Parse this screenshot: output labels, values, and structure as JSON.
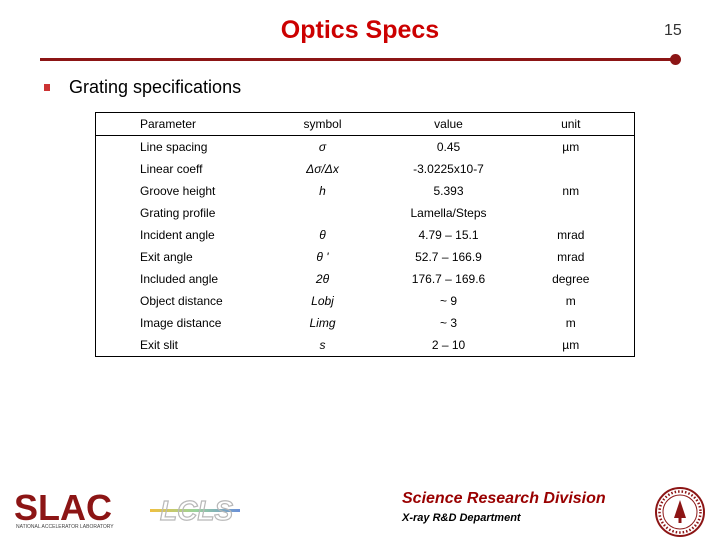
{
  "slide": {
    "title": "Optics Specs",
    "page_number": "15",
    "bullet": "Grating specifications"
  },
  "table": {
    "headers": [
      "Parameter",
      "symbol",
      "value",
      "unit"
    ],
    "rows": [
      {
        "parameter": "Line spacing",
        "symbol": "σ",
        "value": "0.45",
        "unit": "µm"
      },
      {
        "parameter": "Linear coeff",
        "symbol": "Δσ/Δx",
        "value": "-3.0225x10-7",
        "unit": ""
      },
      {
        "parameter": "Groove height",
        "symbol": "h",
        "value": "5.393",
        "unit": "nm"
      },
      {
        "parameter": "Grating profile",
        "symbol": "",
        "value": "Lamella/Steps",
        "unit": ""
      },
      {
        "parameter": "Incident angle",
        "symbol": "θ",
        "value": "4.79 – 15.1",
        "unit": "mrad"
      },
      {
        "parameter": "Exit angle",
        "symbol": "θ '",
        "value": "52.7 – 166.9",
        "unit": "mrad"
      },
      {
        "parameter": "Included angle",
        "symbol": "2θ",
        "value": "176.7 – 169.6",
        "unit": "degree"
      },
      {
        "parameter": "Object distance",
        "symbol": "Lobj",
        "value": "~ 9",
        "unit": "m"
      },
      {
        "parameter": "Image distance",
        "symbol": "Limg",
        "value": "~ 3",
        "unit": "m"
      },
      {
        "parameter": "Exit slit",
        "symbol": "s",
        "value": "2 – 10",
        "unit": "µm"
      }
    ]
  },
  "footer": {
    "slac_logo": "SLAC",
    "slac_logo_sub": "NATIONAL ACCELERATOR LABORATORY",
    "lcls_logo": "LCLS",
    "division": "Science Research Division",
    "department": "X-ray R&D Department",
    "seal_icon": "stanford-seal-icon"
  },
  "colors": {
    "title": "#cc0000",
    "rule": "#8c1515",
    "division": "#990000",
    "slac": "#8c1515"
  }
}
